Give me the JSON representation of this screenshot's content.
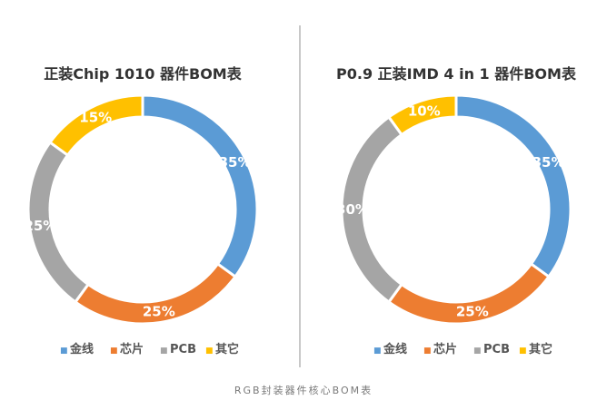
{
  "chart_data": [
    {
      "type": "pie",
      "title": "正装Chip 1010 器件BOM表",
      "categories": [
        "金线",
        "芯片",
        "PCB",
        "其它"
      ],
      "values": [
        35,
        25,
        25,
        15
      ],
      "slice_labels": [
        "35%",
        "25%",
        "25%",
        "15%"
      ],
      "legend_position": "bottom"
    },
    {
      "type": "pie",
      "title": "P0.9 正装IMD 4 in 1 器件BOM表",
      "categories": [
        "金线",
        "芯片",
        "PCB",
        "其它"
      ],
      "values": [
        35,
        25,
        30,
        10
      ],
      "slice_labels": [
        "35%",
        "25%",
        "30%",
        "10%"
      ],
      "legend_position": "bottom"
    }
  ],
  "colors": [
    "#5b9bd5",
    "#ed7d31",
    "#a5a5a5",
    "#ffc000"
  ],
  "legend_bullet": "■",
  "caption": "RGB封装器件核心BOM表"
}
